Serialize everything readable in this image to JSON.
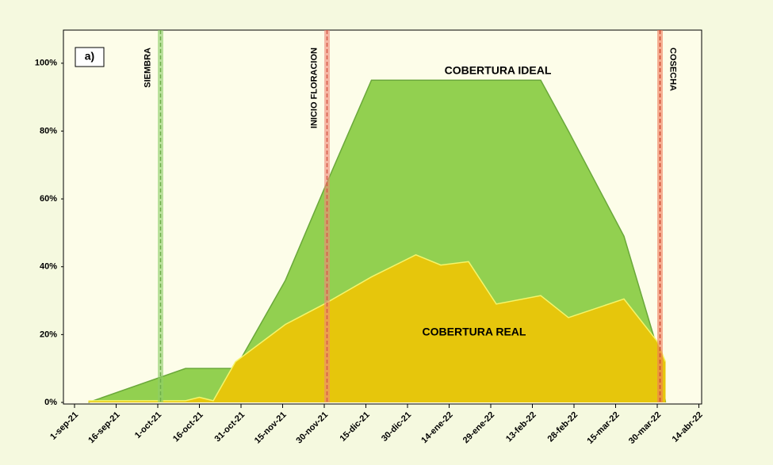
{
  "chart_data": {
    "type": "area",
    "panel_label": "a)",
    "x": [
      "2021-09-06",
      "2021-10-11",
      "2021-10-16",
      "2021-10-21",
      "2021-10-29",
      "2021-11-16",
      "2021-11-30",
      "2021-12-17",
      "2022-01-02",
      "2022-01-11",
      "2022-01-21",
      "2022-01-31",
      "2022-02-16",
      "2022-02-26",
      "2022-03-18",
      "2022-03-30",
      "2022-04-02"
    ],
    "series": [
      {
        "name": "COBERTURA IDEAL",
        "color": "#92d050",
        "edge": "#6aa83a",
        "values": [
          0,
          10,
          10,
          10,
          10,
          36,
          63,
          95,
          95,
          95,
          95,
          95,
          95,
          80,
          49,
          16,
          0
        ]
      },
      {
        "name": "COBERTURA REAL",
        "color": "#e6c60c",
        "edge": "#f5f56a",
        "values": [
          0.5,
          0.5,
          1.5,
          0.5,
          12,
          23,
          29,
          37,
          43.5,
          40.5,
          41.5,
          29,
          31.5,
          25,
          30.5,
          18,
          12
        ]
      }
    ],
    "markers": [
      {
        "label": "SIEMBRA",
        "x": "2021-10-02",
        "color": "#8fcf6a",
        "line": "#6fb04a"
      },
      {
        "label": "INICIO FLORACION",
        "x": "2021-12-01",
        "color": "#f08a78",
        "line": "#d85a48"
      },
      {
        "label": "COSECHA",
        "x": "2022-03-31",
        "color": "#f07a5a",
        "line": "#d04a30"
      }
    ],
    "xlim": [
      "2021-08-28",
      "2022-04-15"
    ],
    "xticks": [
      {
        "value": "2021-09-01",
        "label": "1-sep-21"
      },
      {
        "value": "2021-09-16",
        "label": "16-sep-21"
      },
      {
        "value": "2021-10-01",
        "label": "1-oct-21"
      },
      {
        "value": "2021-10-16",
        "label": "16-oct-21"
      },
      {
        "value": "2021-10-31",
        "label": "31-oct-21"
      },
      {
        "value": "2021-11-15",
        "label": "15-nov-21"
      },
      {
        "value": "2021-11-30",
        "label": "30-nov-21"
      },
      {
        "value": "2021-12-15",
        "label": "15-dic-21"
      },
      {
        "value": "2021-12-30",
        "label": "30-dic-21"
      },
      {
        "value": "2022-01-14",
        "label": "14-ene-22"
      },
      {
        "value": "2022-01-29",
        "label": "29-ene-22"
      },
      {
        "value": "2022-02-13",
        "label": "13-feb-22"
      },
      {
        "value": "2022-02-28",
        "label": "28-feb-22"
      },
      {
        "value": "2022-03-15",
        "label": "15-mar-22"
      },
      {
        "value": "2022-03-30",
        "label": "30-mar-22"
      },
      {
        "value": "2022-04-14",
        "label": "14-abr-22"
      }
    ],
    "ylim": [
      0,
      110
    ],
    "yticks": [
      {
        "value": 0,
        "label": "0%"
      },
      {
        "value": 20,
        "label": "20%"
      },
      {
        "value": 40,
        "label": "40%"
      },
      {
        "value": 60,
        "label": "60%"
      },
      {
        "value": 80,
        "label": "80%"
      },
      {
        "value": 100,
        "label": "100%"
      }
    ]
  }
}
